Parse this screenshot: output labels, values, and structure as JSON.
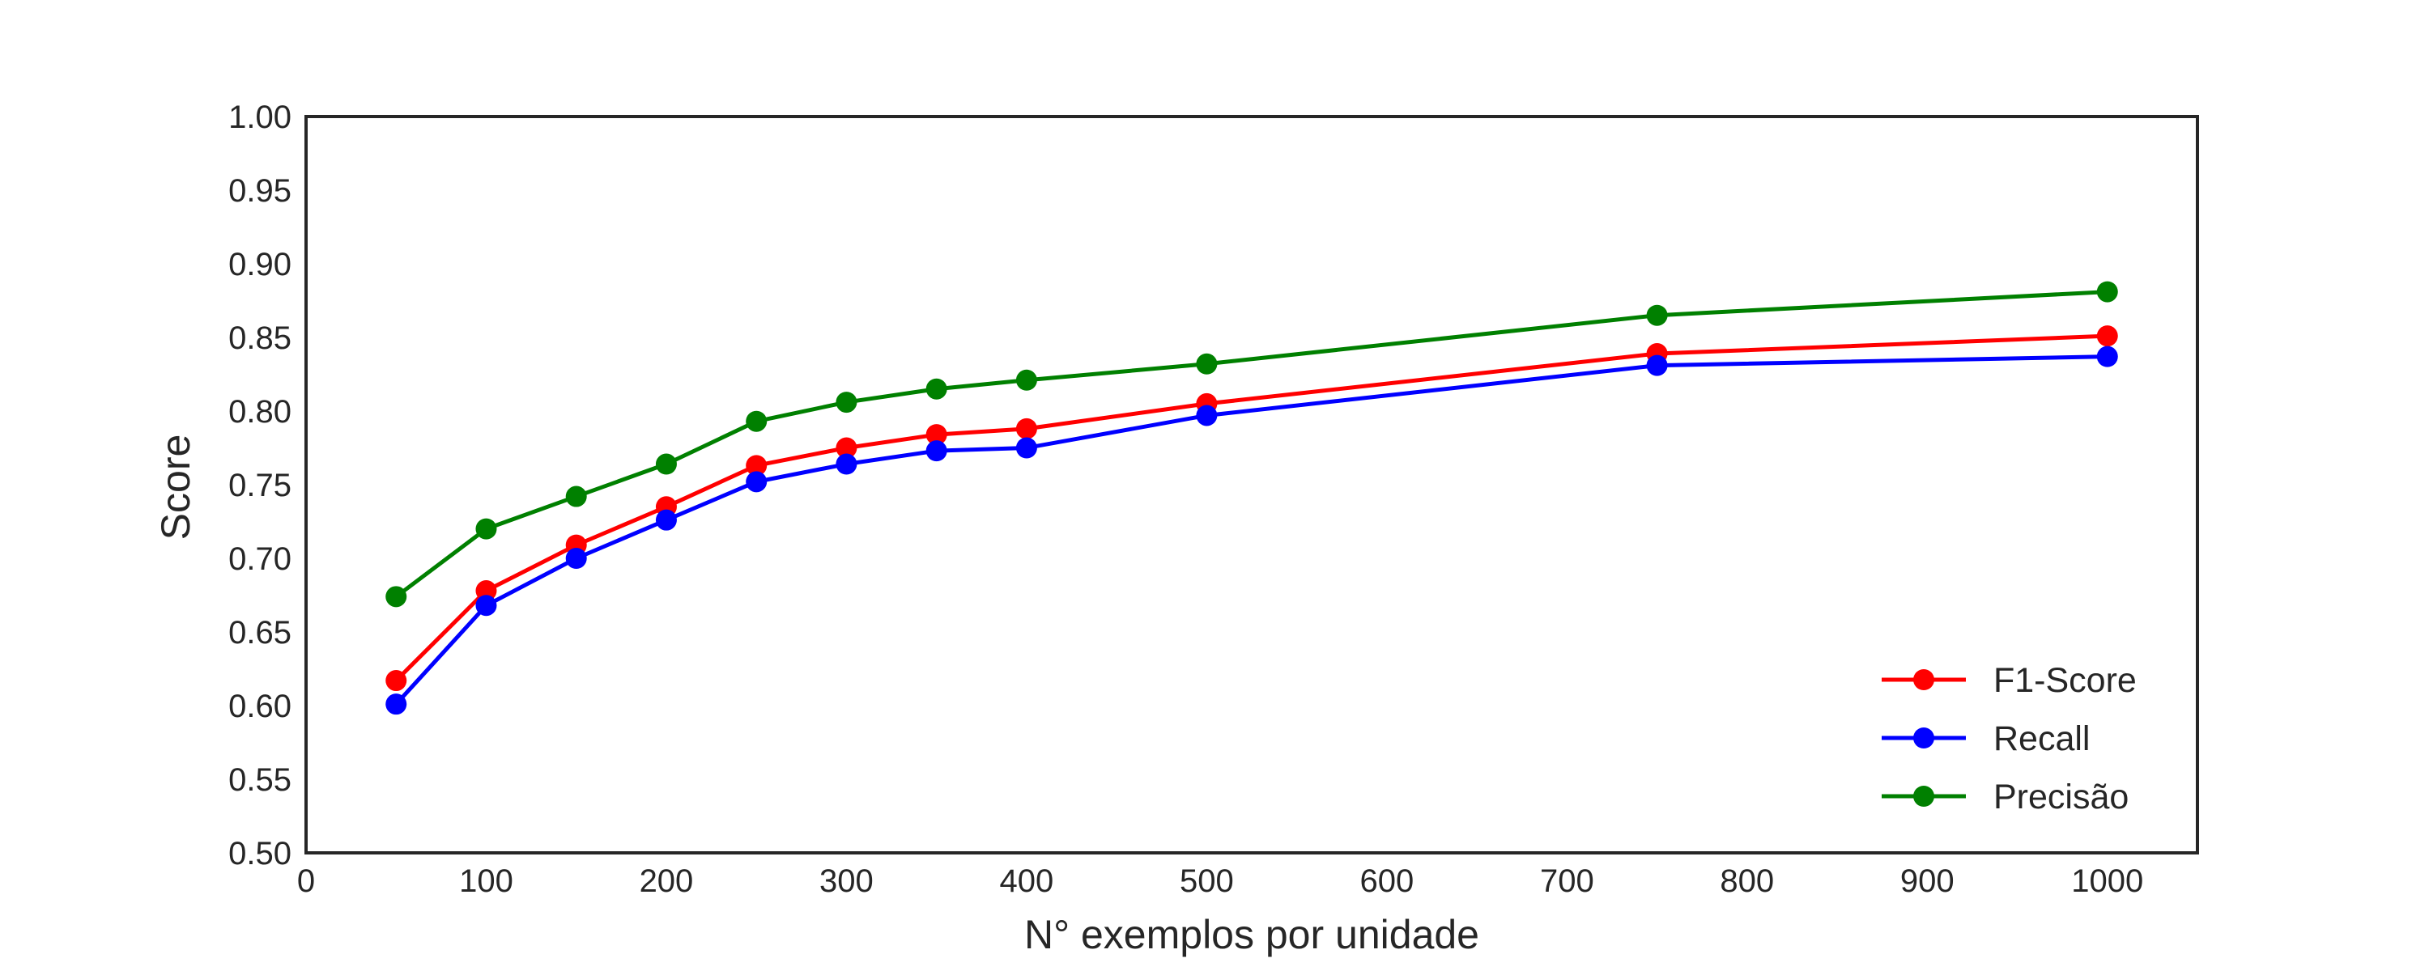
{
  "chart_data": {
    "type": "line",
    "xlabel": "N° exemplos por unidade",
    "ylabel": "Score",
    "xlim": [
      0,
      1050
    ],
    "ylim": [
      0.5,
      1.0
    ],
    "x_ticks": [
      "0",
      "100",
      "200",
      "300",
      "400",
      "500",
      "600",
      "700",
      "800",
      "900",
      "1000"
    ],
    "y_ticks": [
      "0.50",
      "0.55",
      "0.60",
      "0.65",
      "0.70",
      "0.75",
      "0.80",
      "0.85",
      "0.90",
      "0.95",
      "1.00"
    ],
    "grid": false,
    "legend_position": "lower-right",
    "x": [
      50,
      100,
      150,
      200,
      250,
      300,
      350,
      400,
      500,
      750,
      1000
    ],
    "series": [
      {
        "name": "F1-Score",
        "color": "#ff0000",
        "values": [
          0.617,
          0.678,
          0.709,
          0.735,
          0.763,
          0.775,
          0.784,
          0.788,
          0.805,
          0.839,
          0.851
        ]
      },
      {
        "name": "Recall",
        "color": "#0000ff",
        "values": [
          0.601,
          0.668,
          0.7,
          0.726,
          0.752,
          0.764,
          0.773,
          0.775,
          0.797,
          0.831,
          0.837
        ]
      },
      {
        "name": "Precisão",
        "color": "#008000",
        "values": [
          0.674,
          0.72,
          0.742,
          0.764,
          0.793,
          0.806,
          0.815,
          0.821,
          0.832,
          0.865,
          0.881
        ]
      }
    ]
  }
}
